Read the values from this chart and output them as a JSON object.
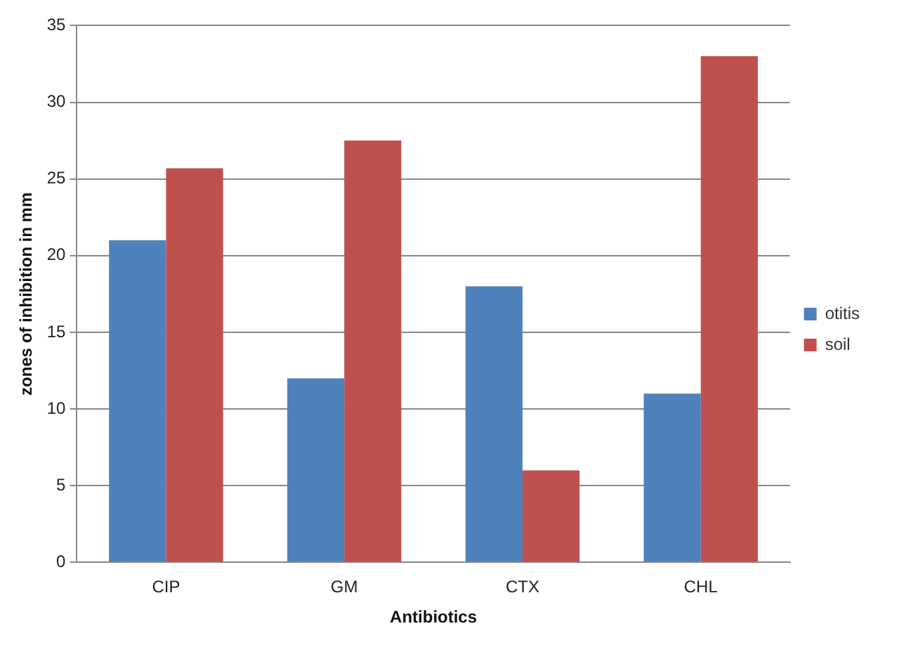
{
  "chart_data": {
    "type": "bar",
    "xlabel": "Antibiotics",
    "ylabel": "zones of inhibition in mm",
    "categories": [
      "CIP",
      "GM",
      "CTX",
      "CHL"
    ],
    "series": [
      {
        "name": "otitis",
        "color": "#4f81bd",
        "values": [
          21,
          12,
          18,
          11
        ]
      },
      {
        "name": "soil",
        "color": "#c0504d",
        "values": [
          25.7,
          27.5,
          6,
          33
        ]
      }
    ],
    "ylim": [
      0,
      35
    ],
    "yticks": [
      0,
      5,
      10,
      15,
      20,
      25,
      30,
      35
    ],
    "grid": "y",
    "legend": "right"
  }
}
